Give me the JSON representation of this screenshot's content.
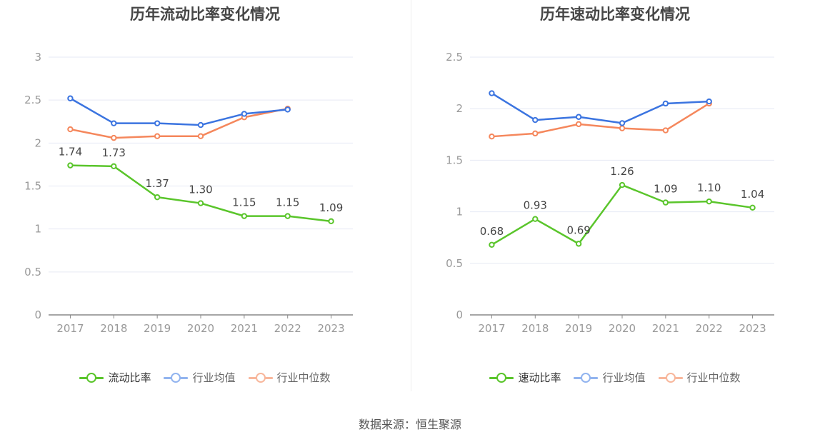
{
  "source": "数据来源：恒生聚源",
  "colors": {
    "green": "#5ac52b",
    "blue": "#3b74e0",
    "orange": "#f5875c",
    "grid": "#e6e9f4",
    "axis": "#888888",
    "label": "#999999"
  },
  "chart_data": [
    {
      "type": "line",
      "title": "历年流动比率变化情况",
      "categories": [
        "2017",
        "2018",
        "2019",
        "2020",
        "2021",
        "2022",
        "2023"
      ],
      "ylim": [
        0,
        3
      ],
      "yticks": [
        "0",
        "0.5",
        "1",
        "1.5",
        "2",
        "2.5",
        "3"
      ],
      "grid": true,
      "legend_position": "bottom",
      "series": [
        {
          "name": "流动比率",
          "color": "#5ac52b",
          "values": [
            1.74,
            1.73,
            1.37,
            1.3,
            1.15,
            1.15,
            1.09
          ],
          "labels": [
            "1.74",
            "1.73",
            "1.37",
            "1.30",
            "1.15",
            "1.15",
            "1.09"
          ]
        },
        {
          "name": "行业均值",
          "color": "#3b74e0",
          "values": [
            2.52,
            2.23,
            2.23,
            2.21,
            2.34,
            2.39,
            null
          ]
        },
        {
          "name": "行业中位数",
          "color": "#f5875c",
          "values": [
            2.16,
            2.06,
            2.08,
            2.08,
            2.3,
            2.4,
            null
          ]
        }
      ]
    },
    {
      "type": "line",
      "title": "历年速动比率变化情况",
      "categories": [
        "2017",
        "2018",
        "2019",
        "2020",
        "2021",
        "2022",
        "2023"
      ],
      "ylim": [
        0,
        2.5
      ],
      "yticks": [
        "0",
        "0.5",
        "1",
        "1.5",
        "2",
        "2.5"
      ],
      "grid": true,
      "legend_position": "bottom",
      "series": [
        {
          "name": "速动比率",
          "color": "#5ac52b",
          "values": [
            0.68,
            0.93,
            0.69,
            1.26,
            1.09,
            1.1,
            1.04
          ],
          "labels": [
            "0.68",
            "0.93",
            "0.69",
            "1.26",
            "1.09",
            "1.10",
            "1.04"
          ]
        },
        {
          "name": "行业均值",
          "color": "#3b74e0",
          "values": [
            2.15,
            1.89,
            1.92,
            1.86,
            2.05,
            2.07,
            null
          ]
        },
        {
          "name": "行业中位数",
          "color": "#f5875c",
          "values": [
            1.73,
            1.76,
            1.85,
            1.81,
            1.79,
            2.05,
            null
          ]
        }
      ]
    }
  ]
}
